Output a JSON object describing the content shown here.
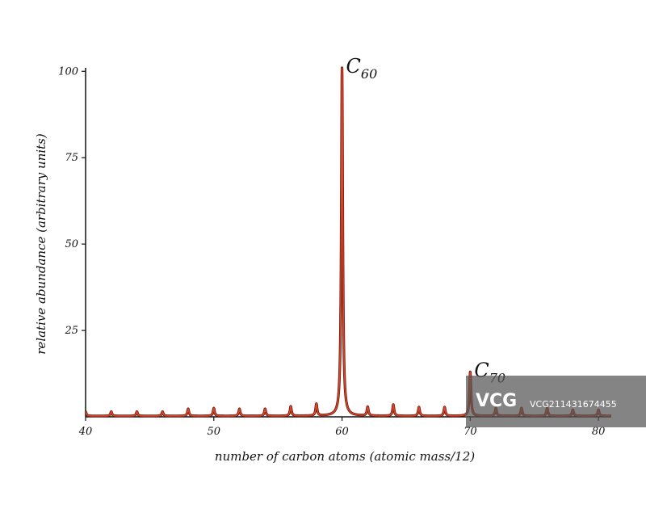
{
  "chart_data": {
    "type": "line",
    "xlabel": "number of carbon atoms (atomic mass/12)",
    "ylabel": "relative abundance (arbitrary units)",
    "xlim": [
      40,
      81
    ],
    "ylim": [
      0,
      101
    ],
    "x_ticks": [
      40,
      50,
      60,
      70,
      80
    ],
    "y_ticks": [
      25,
      50,
      75,
      100
    ],
    "grid": false,
    "legend": "none",
    "line_color": "#d9472b",
    "series": [
      {
        "x": [
          40,
          42,
          44,
          46,
          48,
          50,
          52,
          54,
          56,
          58,
          60,
          62,
          64,
          66,
          68,
          70,
          72,
          74,
          76,
          78,
          80
        ],
        "y": [
          1.5,
          1.5,
          1.5,
          1.5,
          2.3,
          2.5,
          2.3,
          2.3,
          3.0,
          3.7,
          101,
          2.8,
          3.5,
          2.8,
          2.8,
          13,
          2.5,
          2.5,
          2.5,
          2.0,
          2.0
        ]
      }
    ],
    "annotations": [
      {
        "x": 60,
        "y": 101,
        "base": "C",
        "subscript": "60"
      },
      {
        "x": 70,
        "y": 13,
        "base": "C",
        "subscript": "70"
      }
    ]
  },
  "watermark": {
    "logo": "VCG",
    "text": "VCG211431674455"
  }
}
